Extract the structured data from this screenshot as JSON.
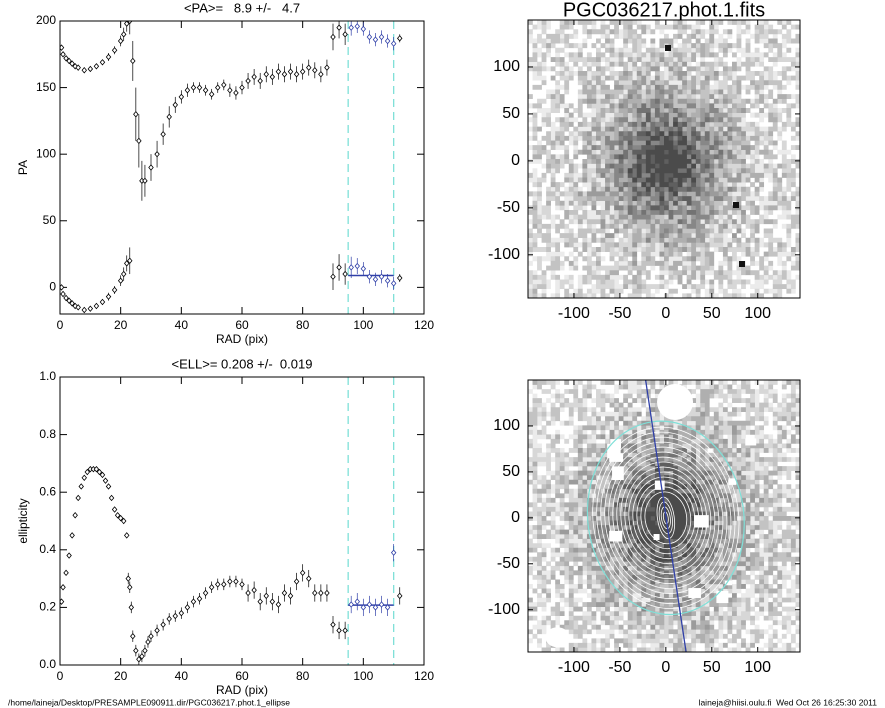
{
  "chart_data": [
    {
      "type": "scatter",
      "title": "<PA>=   8.9 +/-   4.7",
      "x_label": "RAD (pix)",
      "y_label": "PA",
      "xlim": [
        0,
        120
      ],
      "ylim": [
        -20,
        200
      ],
      "xticks": [
        0,
        20,
        40,
        60,
        80,
        100,
        120
      ],
      "yticks": [
        0,
        50,
        100,
        150,
        200
      ],
      "fit_range": [
        95,
        110
      ],
      "mean": 8.9,
      "color": "#000000",
      "fit_color": "#3040a8",
      "range_line_color": "#7fe0d8",
      "series": [
        {
          "x": [
            0.5,
            1,
            2,
            3,
            4,
            5,
            6,
            8,
            10,
            12,
            14,
            16,
            18,
            20,
            21,
            22,
            23,
            24,
            25,
            26,
            27,
            28,
            30,
            32,
            34,
            36,
            38,
            40,
            42,
            44,
            46,
            48,
            50,
            52,
            54,
            56,
            58,
            60,
            62,
            64,
            66,
            68,
            70,
            72,
            74,
            76,
            78,
            80,
            82,
            84,
            86,
            88,
            90,
            92,
            94,
            96,
            98,
            100,
            102,
            104,
            106,
            108,
            110,
            112
          ],
          "values": [
            180,
            175,
            172,
            170,
            168,
            166,
            165,
            163,
            164,
            166,
            169,
            173,
            178,
            185,
            190,
            198,
            200,
            170,
            130,
            110,
            80,
            80,
            90,
            100,
            115,
            128,
            137,
            143,
            148,
            150,
            150,
            148,
            145,
            150,
            152,
            148,
            146,
            150,
            155,
            158,
            155,
            160,
            158,
            162,
            160,
            162,
            160,
            162,
            165,
            163,
            160,
            165,
            188,
            195,
            190,
            195,
            196,
            194,
            188,
            186,
            188,
            185,
            183,
            187
          ],
          "errors": [
            2,
            2,
            2,
            2,
            2,
            2,
            2,
            2,
            2,
            2,
            2,
            3,
            3,
            4,
            5,
            6,
            10,
            15,
            20,
            20,
            15,
            12,
            10,
            10,
            8,
            8,
            6,
            5,
            5,
            4,
            4,
            4,
            4,
            4,
            4,
            5,
            5,
            5,
            6,
            6,
            6,
            6,
            6,
            6,
            6,
            6,
            6,
            6,
            6,
            6,
            6,
            6,
            10,
            8,
            8,
            6,
            5,
            5,
            5,
            5,
            5,
            5,
            5,
            3
          ]
        },
        {
          "x": [
            0.5,
            1,
            2,
            3,
            4,
            5,
            6,
            8,
            10,
            12,
            14,
            16,
            18,
            20,
            21,
            22,
            23,
            90,
            92,
            94,
            96,
            98,
            100,
            102,
            104,
            106,
            108,
            110,
            112
          ],
          "values": [
            0,
            -5,
            -8,
            -10,
            -12,
            -14,
            -15,
            -17,
            -16,
            -14,
            -11,
            -7,
            -2,
            5,
            10,
            18,
            20,
            8,
            15,
            10,
            15,
            16,
            14,
            8,
            6,
            8,
            5,
            3,
            7
          ],
          "errors": [
            2,
            2,
            2,
            2,
            2,
            2,
            2,
            2,
            2,
            2,
            2,
            3,
            3,
            4,
            5,
            6,
            10,
            10,
            10,
            8,
            8,
            6,
            5,
            5,
            5,
            5,
            5,
            5,
            3
          ]
        }
      ]
    },
    {
      "type": "image",
      "title": "PGC036217.phot.1.fits",
      "xlim": [
        -150,
        146
      ],
      "ylim": [
        -146,
        150
      ],
      "xticks": [
        -100,
        -50,
        0,
        50,
        100
      ],
      "yticks": [
        -100,
        -50,
        0,
        50,
        100
      ],
      "isophotes": false
    },
    {
      "type": "scatter",
      "title": "<ELL>= 0.208 +/-  0.019",
      "x_label": "RAD (pix)",
      "y_label": "ellipticity",
      "xlim": [
        0,
        120
      ],
      "ylim": [
        0,
        1
      ],
      "xticks": [
        0,
        20,
        40,
        60,
        80,
        100,
        120
      ],
      "yticks": [
        {
          "value": 0,
          "label": "0.0"
        },
        0.2,
        0.4,
        0.6,
        0.8,
        {
          "value": 1,
          "label": "1.0"
        }
      ],
      "fit_range": [
        95,
        110
      ],
      "mean": 0.208,
      "color": "#000000",
      "fit_color": "#3040a8",
      "range_line_color": "#7fe0d8",
      "series": [
        {
          "x": [
            0.5,
            1,
            2,
            3,
            4,
            5,
            6,
            7,
            8,
            9,
            10,
            11,
            12,
            13,
            14,
            15,
            16,
            17,
            18,
            19,
            20,
            21,
            22,
            22.5,
            23,
            23.5,
            24,
            25,
            26,
            27,
            28,
            29,
            30,
            32,
            34,
            36,
            38,
            40,
            42,
            44,
            46,
            48,
            50,
            52,
            54,
            56,
            58,
            60,
            62,
            64,
            66,
            68,
            70,
            72,
            74,
            76,
            78,
            80,
            82,
            84,
            86,
            88,
            90,
            92,
            94,
            96,
            98,
            100,
            102,
            104,
            106,
            108,
            110,
            112
          ],
          "values": [
            0.22,
            0.27,
            0.32,
            0.38,
            0.45,
            0.52,
            0.58,
            0.62,
            0.65,
            0.67,
            0.68,
            0.68,
            0.68,
            0.67,
            0.66,
            0.64,
            0.62,
            0.58,
            0.54,
            0.52,
            0.51,
            0.5,
            0.45,
            0.3,
            0.27,
            0.2,
            0.1,
            0.05,
            0.02,
            0.03,
            0.05,
            0.08,
            0.1,
            0.12,
            0.14,
            0.16,
            0.17,
            0.18,
            0.2,
            0.22,
            0.23,
            0.25,
            0.27,
            0.28,
            0.28,
            0.29,
            0.29,
            0.28,
            0.25,
            0.26,
            0.22,
            0.24,
            0.22,
            0.21,
            0.25,
            0.24,
            0.29,
            0.32,
            0.3,
            0.25,
            0.25,
            0.25,
            0.14,
            0.12,
            0.12,
            0.21,
            0.22,
            0.2,
            0.21,
            0.2,
            0.21,
            0.2,
            0.39,
            0.24
          ],
          "errors": [
            0.005,
            0.005,
            0.005,
            0.005,
            0.005,
            0.005,
            0.005,
            0.005,
            0.005,
            0.005,
            0.005,
            0.005,
            0.005,
            0.005,
            0.005,
            0.005,
            0.005,
            0.005,
            0.005,
            0.005,
            0.005,
            0.005,
            0.005,
            0.02,
            0.02,
            0.02,
            0.02,
            0.02,
            0.02,
            0.02,
            0.02,
            0.02,
            0.02,
            0.02,
            0.02,
            0.02,
            0.02,
            0.02,
            0.02,
            0.02,
            0.02,
            0.02,
            0.02,
            0.02,
            0.02,
            0.02,
            0.02,
            0.02,
            0.03,
            0.03,
            0.03,
            0.03,
            0.03,
            0.03,
            0.03,
            0.03,
            0.03,
            0.03,
            0.03,
            0.03,
            0.03,
            0.03,
            0.03,
            0.03,
            0.03,
            0.03,
            0.03,
            0.03,
            0.03,
            0.03,
            0.03,
            0.03,
            0.03,
            0.03
          ]
        }
      ]
    },
    {
      "type": "image",
      "xlim": [
        -150,
        146
      ],
      "ylim": [
        -146,
        150
      ],
      "xticks": [
        -100,
        -50,
        0,
        50,
        100
      ],
      "yticks": [
        -100,
        -50,
        0,
        50,
        100
      ],
      "isophotes": true
    }
  ],
  "footer": {
    "path": "/home/laineja/Desktop/PRESAMPLE090911.dir/PGC036217.phot.1_ellipse",
    "user": "laineja@hiisi.oulu.fi  Wed Oct 26 16:25:30 2011"
  }
}
